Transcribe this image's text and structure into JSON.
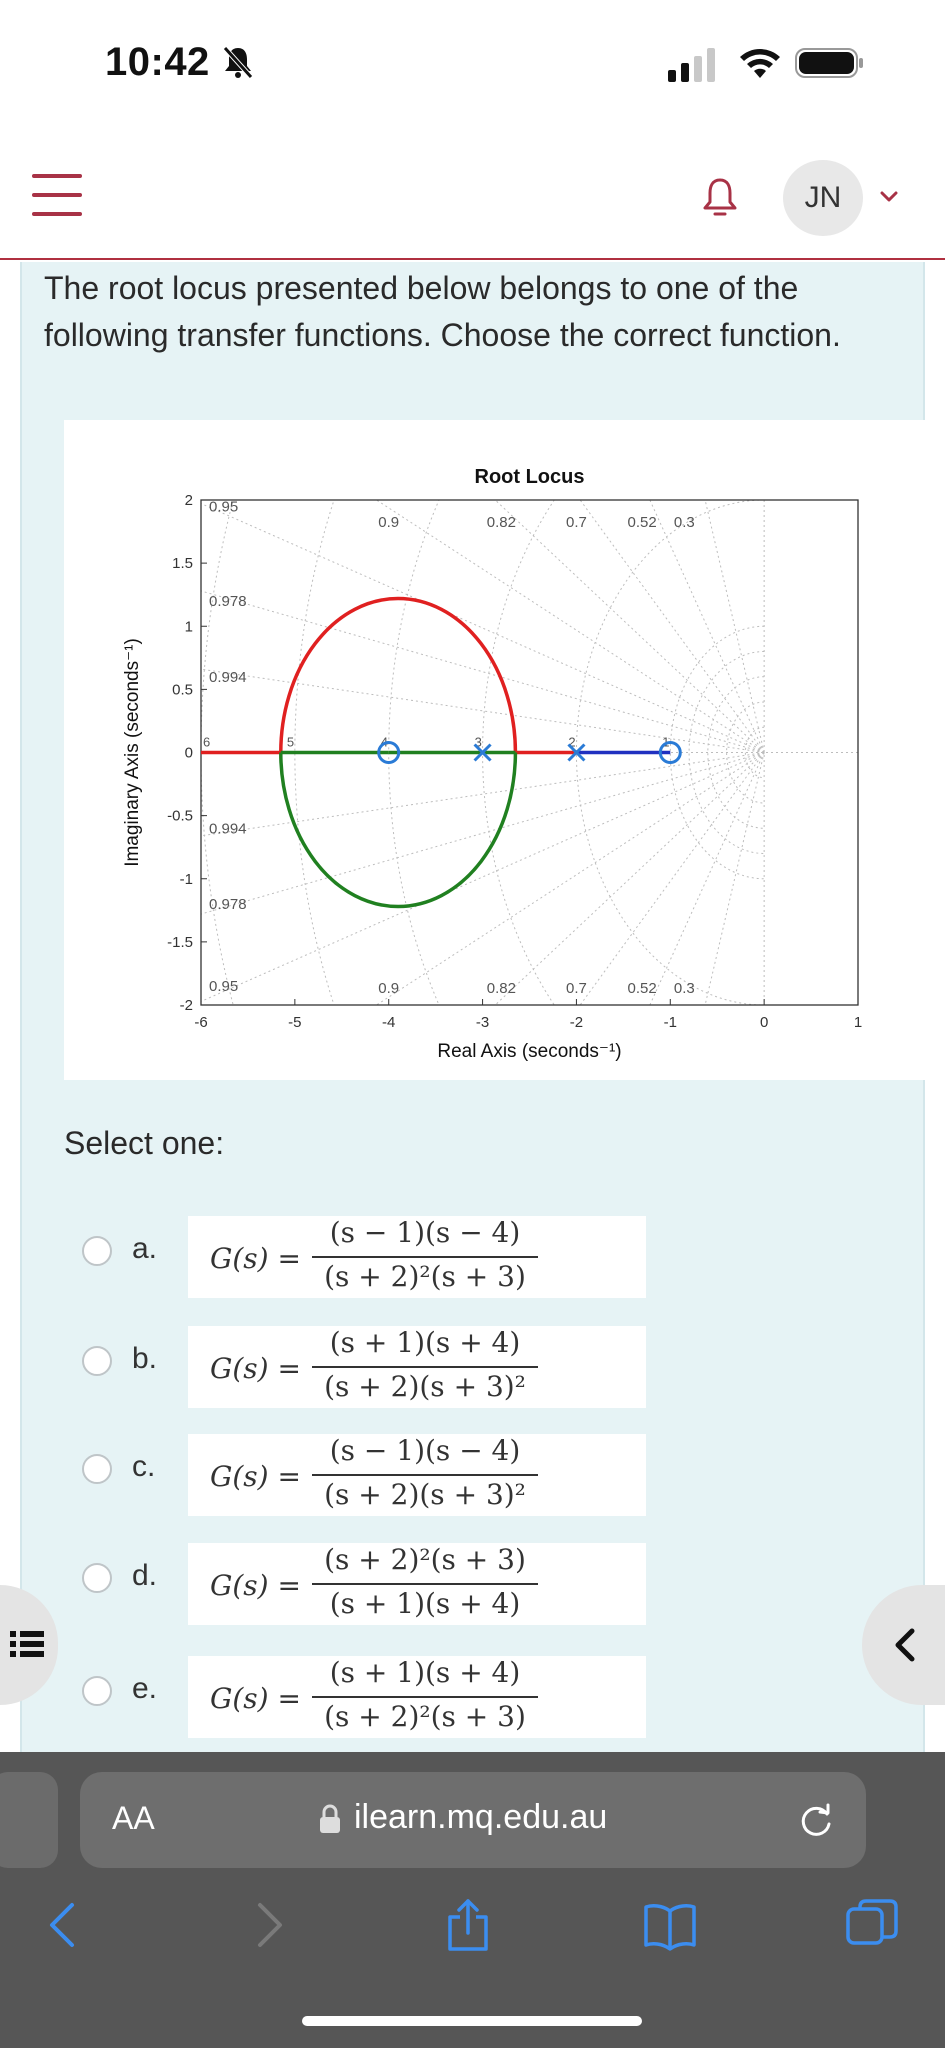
{
  "status_bar": {
    "time": "10:42"
  },
  "header": {
    "user_initials": "JN"
  },
  "question": {
    "text": "The root locus presented below belongs to one of the following transfer functions. Choose the correct function.",
    "select_label": "Select one:"
  },
  "chart_data": {
    "type": "line",
    "title": "Root Locus",
    "xlabel": "Real Axis (seconds⁻¹)",
    "ylabel": "Imaginary Axis (seconds⁻¹)",
    "xlim": [
      -6,
      1
    ],
    "ylim": [
      -2,
      2
    ],
    "x_ticks": [
      "-6",
      "-5",
      "-4",
      "-3",
      "-2",
      "-1",
      "0",
      "1"
    ],
    "y_ticks": [
      "2",
      "1.5",
      "1",
      "0.5",
      "0",
      "-0.5",
      "-1",
      "-1.5",
      "-2"
    ],
    "damping_labels_top": [
      "0.9",
      "0.82",
      "0.7",
      "0.52",
      "0.3"
    ],
    "damping_labels_bottom": [
      "0.9",
      "0.82",
      "0.7",
      "0.52",
      "0.3"
    ],
    "damping_labels_left": [
      "0.95",
      "0.978",
      "0.994",
      "0.994",
      "0.978",
      "0.95"
    ],
    "natural_freq_labels": [
      "6",
      "5",
      "4",
      "3",
      "2",
      "1"
    ],
    "poles": [
      {
        "x": -3,
        "y": 0
      },
      {
        "x": -2,
        "y": 0
      }
    ],
    "zeros": [
      {
        "x": -4,
        "y": 0
      },
      {
        "x": -1,
        "y": 0
      }
    ],
    "series": [
      {
        "name": "branch-red",
        "color": "#e02020",
        "segments": [
          [
            [
              -6,
              0
            ],
            [
              -5.15,
              0
            ]
          ],
          [
            [
              -2.65,
              0
            ],
            [
              -2,
              0
            ]
          ]
        ],
        "arc": "upper",
        "arc_center": [
          -3.9,
          0
        ],
        "arc_rx": 1.25,
        "arc_ry": 1.22
      },
      {
        "name": "branch-green",
        "color": "#208020",
        "segments": [
          [
            [
              -5.15,
              0
            ],
            [
              -4,
              0
            ]
          ],
          [
            [
              -4,
              0
            ],
            [
              -3,
              0
            ]
          ],
          [
            [
              -3,
              0
            ],
            [
              -2.65,
              0
            ]
          ]
        ],
        "arc": "lower",
        "arc_center": [
          -3.9,
          0
        ],
        "arc_rx": 1.25,
        "arc_ry": 1.22
      },
      {
        "name": "branch-blue",
        "color": "#2030c0",
        "segments": [
          [
            [
              -2,
              0
            ],
            [
              -1,
              0
            ]
          ]
        ]
      }
    ]
  },
  "options": [
    {
      "letter": "a.",
      "lhs": "G(s) =",
      "num": "(s − 1)(s − 4)",
      "den": "(s + 2)²(s + 3)"
    },
    {
      "letter": "b.",
      "lhs": "G(s) =",
      "num": "(s + 1)(s + 4)",
      "den": "(s + 2)(s + 3)²"
    },
    {
      "letter": "c.",
      "lhs": "G(s) =",
      "num": "(s − 1)(s − 4)",
      "den": "(s + 2)(s + 3)²"
    },
    {
      "letter": "d.",
      "lhs": "G(s) =",
      "num": "(s + 2)²(s + 3)",
      "den": "(s + 1)(s + 4)"
    },
    {
      "letter": "e.",
      "lhs": "G(s) =",
      "num": "(s + 1)(s + 4)",
      "den": "(s + 2)²(s + 3)"
    }
  ],
  "browser": {
    "aa_label": "AA",
    "url": "ilearn.mq.edu.au"
  },
  "colors": {
    "accent": "#a83246",
    "panel": "#e6f3f5",
    "toolbar_icon": "#3b8df0"
  }
}
